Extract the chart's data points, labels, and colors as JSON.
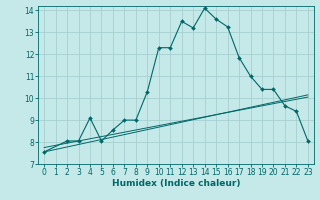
{
  "xlabel": "Humidex (Indice chaleur)",
  "bg_color": "#c5e8e8",
  "grid_color": "#a8d0d0",
  "line_color": "#006868",
  "xlim": [
    -0.5,
    23.5
  ],
  "ylim": [
    7,
    14.2
  ],
  "yticks": [
    7,
    8,
    9,
    10,
    11,
    12,
    13,
    14
  ],
  "xticks": [
    0,
    1,
    2,
    3,
    4,
    5,
    6,
    7,
    8,
    9,
    10,
    11,
    12,
    13,
    14,
    15,
    16,
    17,
    18,
    19,
    20,
    21,
    22,
    23
  ],
  "main_x": [
    0,
    2,
    3,
    4,
    5,
    6,
    7,
    8,
    9,
    10,
    11,
    12,
    13,
    14,
    15,
    16,
    17,
    18,
    19,
    20,
    21,
    22,
    23
  ],
  "main_y": [
    7.55,
    8.05,
    8.05,
    9.1,
    8.05,
    8.55,
    9.0,
    9.0,
    10.3,
    12.3,
    12.3,
    13.5,
    13.2,
    14.1,
    13.6,
    13.25,
    11.85,
    11.0,
    10.4,
    10.4,
    9.65,
    9.4,
    8.05
  ],
  "line1_x": [
    0,
    23
  ],
  "line1_y": [
    7.55,
    10.15
  ],
  "line2_x": [
    0,
    23
  ],
  "line2_y": [
    7.75,
    10.05
  ],
  "tick_fontsize": 5.5,
  "xlabel_fontsize": 6.5
}
